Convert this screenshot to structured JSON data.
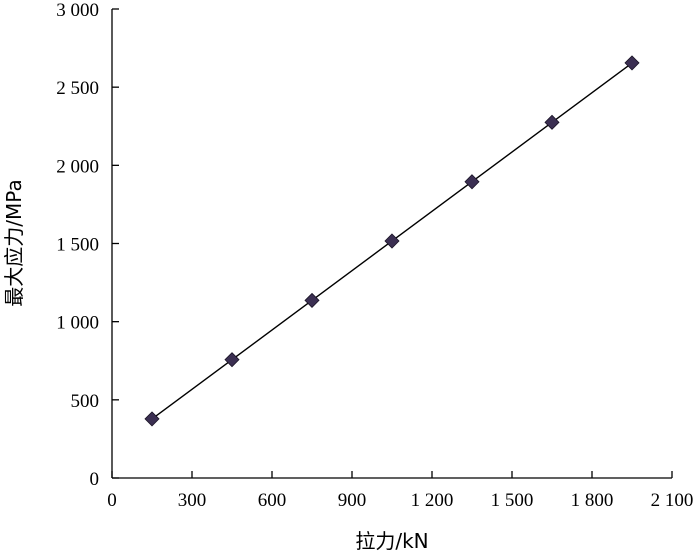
{
  "chart_data": {
    "type": "scatter",
    "xlabel": "拉力/kN",
    "ylabel": "最大应力/MPa",
    "xlim": [
      0,
      2100
    ],
    "ylim": [
      0,
      3000
    ],
    "x_ticks": [
      0,
      300,
      600,
      900,
      1200,
      1500,
      1800,
      2100
    ],
    "y_ticks": [
      0,
      500,
      1000,
      1500,
      2000,
      2500,
      3000
    ],
    "x_tick_labels": [
      "0",
      "300",
      "600",
      "900",
      "1 200",
      "1 500",
      "1 800",
      "2 100"
    ],
    "y_tick_labels": [
      "0",
      "500",
      "1 000",
      "1 500",
      "2 000",
      "2 500",
      "3 000"
    ],
    "grid": false,
    "legend": "none",
    "marker_color": "#3b2f52",
    "line_color": "#000000",
    "series": [
      {
        "marker": "diamond",
        "trendline": "linear",
        "x": [
          150,
          450,
          750,
          1050,
          1350,
          1650,
          1950
        ],
        "y": [
          378,
          757,
          1136,
          1516,
          1895,
          2275,
          2655
        ]
      }
    ]
  }
}
